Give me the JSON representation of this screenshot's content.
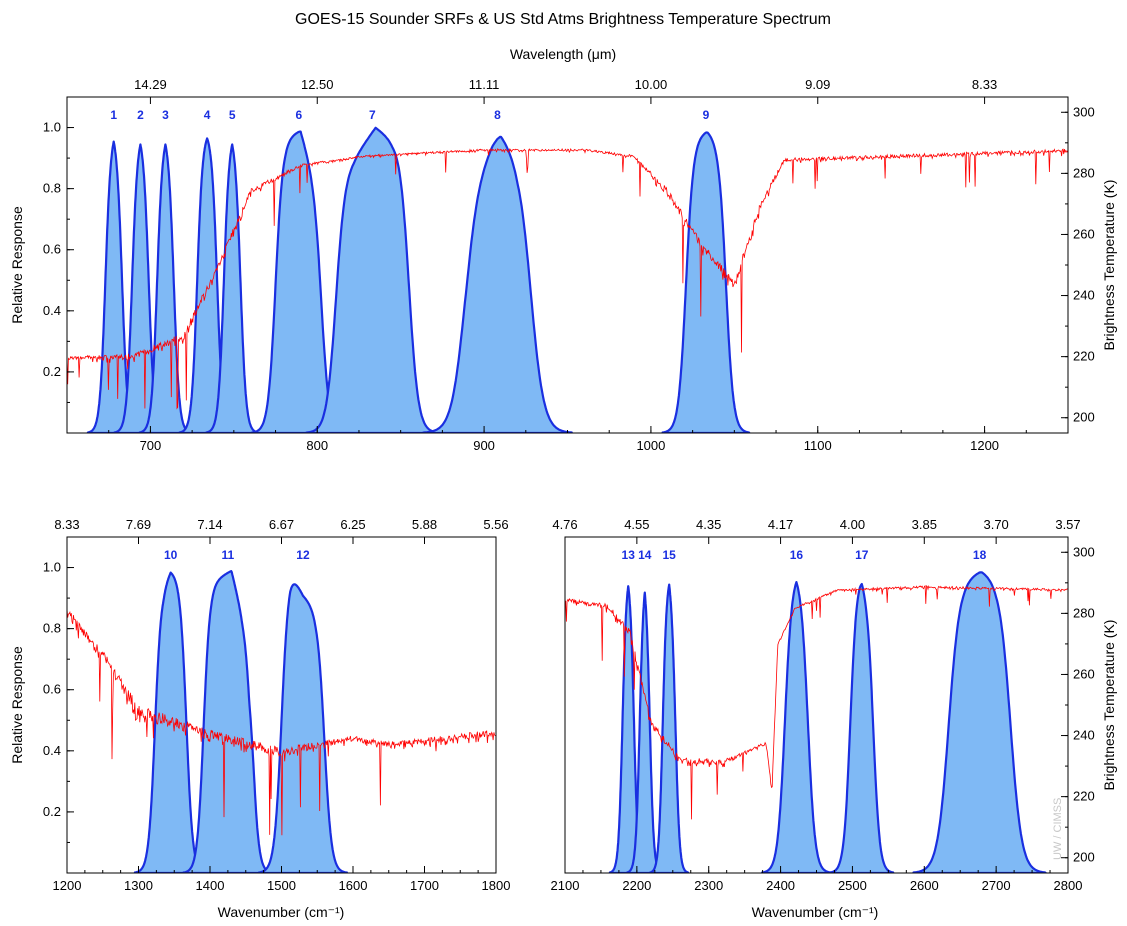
{
  "title": "GOES-15 Sounder SRFs & US Std Atms Brightness Temperature Spectrum",
  "top_axis_label": "Wavelength (μm)",
  "left_axis_label": "Relative Response",
  "right_axis_label": "Brightness Temperature (K)",
  "bottom_axis_label": "Wavenumber (cm⁻¹)",
  "credit": "UW / CIMSS",
  "colors": {
    "srf_fill": "#7fb9f5",
    "srf_line": "#1a2fe0",
    "bt_line": "#ff0000",
    "channel_label": "#1a2fe0"
  },
  "chart_data": [
    {
      "type": "area",
      "panel": "top",
      "xlim": [
        650,
        1250
      ],
      "ylim_left": [
        0,
        1.1
      ],
      "ylim_right": [
        195,
        305
      ],
      "x_ticks": [
        700,
        800,
        900,
        1000,
        1100,
        1200
      ],
      "x_tick_labels": [
        "700",
        "800",
        "900",
        "1000",
        "1100",
        "1200"
      ],
      "y_ticks": [
        0.2,
        0.4,
        0.6,
        0.8,
        1.0
      ],
      "y_tick_labels": [
        "0.2",
        "0.4",
        "0.6",
        "0.8",
        "1.0"
      ],
      "y2_ticks": [
        200,
        220,
        240,
        260,
        280,
        300
      ],
      "y2_tick_labels": [
        "200",
        "220",
        "240",
        "260",
        "280",
        "300"
      ],
      "top_ticks": [
        700,
        750,
        800,
        850,
        900,
        950,
        1000,
        1050,
        1100,
        1150,
        1200
      ],
      "top_tick_labels": [
        "14.29",
        "12.50",
        "11.11",
        "10.00",
        "9.09",
        "8.33"
      ],
      "top_tick_label_positions": [
        700,
        800,
        900,
        1000,
        1100,
        1200
      ],
      "series": [
        {
          "name": "1",
          "type": "srf",
          "center": 678,
          "halfwidth": 5,
          "edge": 3,
          "peaks": [
            [
              678,
              1.0
            ]
          ]
        },
        {
          "name": "2",
          "type": "srf",
          "center": 694,
          "halfwidth": 5,
          "edge": 3,
          "peaks": [
            [
              694,
              0.99
            ]
          ]
        },
        {
          "name": "3",
          "type": "srf",
          "center": 709,
          "halfwidth": 5,
          "edge": 3,
          "peaks": [
            [
              709,
              0.99
            ]
          ]
        },
        {
          "name": "4",
          "type": "srf",
          "center": 734,
          "halfwidth": 6,
          "edge": 3,
          "peaks": [
            [
              734,
              0.99
            ]
          ]
        },
        {
          "name": "5",
          "type": "srf",
          "center": 749,
          "halfwidth": 5,
          "edge": 3,
          "peaks": [
            [
              749,
              0.99
            ]
          ]
        },
        {
          "name": "6",
          "type": "srf",
          "center": 789,
          "halfwidth": 14,
          "edge": 4,
          "peaks": [
            [
              781,
              0.97
            ],
            [
              790,
              0.99
            ],
            [
              803,
              0.75
            ]
          ]
        },
        {
          "name": "7",
          "type": "srf",
          "center": 833,
          "halfwidth": 22,
          "edge": 5,
          "peaks": [
            [
              810,
              0.84
            ],
            [
              822,
              0.9
            ],
            [
              835,
              1.0
            ],
            [
              845,
              0.96
            ]
          ]
        },
        {
          "name": "8",
          "type": "srf",
          "center": 908,
          "halfwidth": 20,
          "edge": 7,
          "peaks": [
            [
              890,
              0.8
            ],
            [
              905,
              0.95
            ],
            [
              910,
              0.98
            ],
            [
              920,
              0.92
            ]
          ]
        },
        {
          "name": "9",
          "type": "srf",
          "center": 1033,
          "halfwidth": 12,
          "edge": 4,
          "peaks": [
            [
              1025,
              0.97
            ],
            [
              1034,
              0.99
            ],
            [
              1040,
              0.97
            ]
          ]
        }
      ],
      "bt_spectrum": {
        "name": "US Std Atms Brightness Temperature",
        "units": "K",
        "baseline": [
          [
            650,
            220
          ],
          [
            690,
            221
          ],
          [
            720,
            228
          ],
          [
            740,
            250
          ],
          [
            760,
            275
          ],
          [
            790,
            283
          ],
          [
            830,
            286
          ],
          [
            900,
            288
          ],
          [
            960,
            288
          ],
          [
            990,
            286
          ],
          [
            1010,
            275
          ],
          [
            1030,
            258
          ],
          [
            1050,
            245
          ],
          [
            1065,
            270
          ],
          [
            1080,
            285
          ],
          [
            1250,
            288
          ]
        ],
        "noise": [
          [
            650,
            6
          ],
          [
            720,
            14
          ],
          [
            760,
            10
          ],
          [
            800,
            3
          ],
          [
            990,
            4
          ],
          [
            1010,
            14
          ],
          [
            1060,
            16
          ],
          [
            1080,
            6
          ],
          [
            1250,
            6
          ]
        ]
      },
      "channel_labels": [
        "1",
        "2",
        "3",
        "4",
        "5",
        "6",
        "7",
        "8",
        "9"
      ]
    },
    {
      "type": "area",
      "panel": "bottom-left",
      "xlim": [
        1200,
        1800
      ],
      "ylim_left": [
        0,
        1.1
      ],
      "ylim_right": [
        195,
        305
      ],
      "x_ticks": [
        1200,
        1300,
        1400,
        1500,
        1600,
        1700,
        1800
      ],
      "x_tick_labels": [
        "1200",
        "1300",
        "1400",
        "1500",
        "1600",
        "1700",
        "1800"
      ],
      "y_ticks": [
        0.2,
        0.4,
        0.6,
        0.8,
        1.0
      ],
      "y_tick_labels": [
        "0.2",
        "0.4",
        "0.6",
        "0.8",
        "1.0"
      ],
      "top_tick_labels": [
        "8.33",
        "7.69",
        "7.14",
        "6.67",
        "6.25",
        "5.88",
        "5.56"
      ],
      "top_tick_label_positions": [
        1200,
        1300,
        1400,
        1500,
        1600,
        1700,
        1800
      ],
      "series": [
        {
          "name": "10",
          "type": "srf",
          "center": 1345,
          "halfwidth": 22,
          "edge": 8,
          "peaks": [
            [
              1335,
              0.95
            ],
            [
              1345,
              0.99
            ],
            [
              1358,
              0.98
            ]
          ]
        },
        {
          "name": "11",
          "type": "srf",
          "center": 1425,
          "halfwidth": 34,
          "edge": 8,
          "peaks": [
            [
              1400,
              0.95
            ],
            [
              1430,
              0.99
            ],
            [
              1445,
              0.85
            ],
            [
              1455,
              0.78
            ],
            [
              1462,
              0.9
            ]
          ]
        },
        {
          "name": "12",
          "type": "srf",
          "center": 1530,
          "halfwidth": 30,
          "edge": 9,
          "peaks": [
            [
              1512,
              1.0
            ],
            [
              1530,
              0.91
            ],
            [
              1548,
              0.87
            ]
          ]
        }
      ],
      "bt_spectrum": {
        "name": "US Std Atms Brightness Temperature",
        "units": "K",
        "baseline": [
          [
            1200,
            282
          ],
          [
            1250,
            268
          ],
          [
            1300,
            250
          ],
          [
            1400,
            242
          ],
          [
            1500,
            236
          ],
          [
            1600,
            240
          ],
          [
            1650,
            238
          ],
          [
            1800,
            242
          ]
        ],
        "noise": [
          [
            1200,
            14
          ],
          [
            1300,
            22
          ],
          [
            1500,
            16
          ],
          [
            1600,
            10
          ],
          [
            1800,
            12
          ]
        ]
      },
      "channel_labels": [
        "10",
        "11",
        "12"
      ]
    },
    {
      "type": "area",
      "panel": "bottom-right",
      "xlim": [
        2100,
        2800
      ],
      "ylim_left": [
        0,
        1.1
      ],
      "ylim_right": [
        195,
        305
      ],
      "x_ticks": [
        2100,
        2200,
        2300,
        2400,
        2500,
        2600,
        2700,
        2800
      ],
      "x_tick_labels": [
        "2100",
        "2200",
        "2300",
        "2400",
        "2500",
        "2600",
        "2700",
        "2800"
      ],
      "y2_ticks": [
        200,
        220,
        240,
        260,
        280,
        300
      ],
      "y2_tick_labels": [
        "200",
        "220",
        "240",
        "260",
        "280",
        "300"
      ],
      "top_tick_labels": [
        "4.76",
        "4.55",
        "4.35",
        "4.17",
        "4.00",
        "3.85",
        "3.70",
        "3.57"
      ],
      "top_tick_label_positions": [
        2100,
        2200,
        2300,
        2400,
        2500,
        2600,
        2700,
        2800
      ],
      "series": [
        {
          "name": "13",
          "type": "srf",
          "center": 2188,
          "halfwidth": 8,
          "edge": 5,
          "peaks": [
            [
              2188,
              0.99
            ]
          ]
        },
        {
          "name": "14",
          "type": "srf",
          "center": 2211,
          "halfwidth": 7,
          "edge": 5,
          "peaks": [
            [
              2211,
              0.99
            ]
          ]
        },
        {
          "name": "15",
          "type": "srf",
          "center": 2245,
          "halfwidth": 9,
          "edge": 5,
          "peaks": [
            [
              2245,
              0.98
            ],
            [
              2252,
              0.92
            ]
          ]
        },
        {
          "name": "16",
          "type": "srf",
          "center": 2422,
          "halfwidth": 16,
          "edge": 9,
          "peaks": [
            [
              2422,
              0.99
            ]
          ]
        },
        {
          "name": "17",
          "type": "srf",
          "center": 2513,
          "halfwidth": 16,
          "edge": 8,
          "peaks": [
            [
              2510,
              0.98
            ],
            [
              2520,
              0.95
            ]
          ]
        },
        {
          "name": "18",
          "type": "srf",
          "center": 2677,
          "halfwidth": 43,
          "edge": 14,
          "peaks": [
            [
              2655,
              0.97
            ],
            [
              2680,
              0.99
            ],
            [
              2700,
              0.97
            ]
          ]
        }
      ],
      "bt_spectrum": {
        "name": "US Std Atms Brightness Temperature",
        "units": "K",
        "baseline": [
          [
            2100,
            285
          ],
          [
            2160,
            283
          ],
          [
            2190,
            275
          ],
          [
            2220,
            245
          ],
          [
            2260,
            233
          ],
          [
            2320,
            232
          ],
          [
            2380,
            238
          ],
          [
            2388,
            222
          ],
          [
            2396,
            270
          ],
          [
            2420,
            282
          ],
          [
            2480,
            288
          ],
          [
            2600,
            289
          ],
          [
            2800,
            288
          ]
        ],
        "noise": [
          [
            2100,
            6
          ],
          [
            2200,
            12
          ],
          [
            2300,
            10
          ],
          [
            2400,
            3
          ],
          [
            2600,
            4
          ],
          [
            2800,
            3
          ]
        ]
      },
      "channel_labels": [
        "13",
        "14",
        "15",
        "16",
        "17",
        "18"
      ]
    }
  ]
}
